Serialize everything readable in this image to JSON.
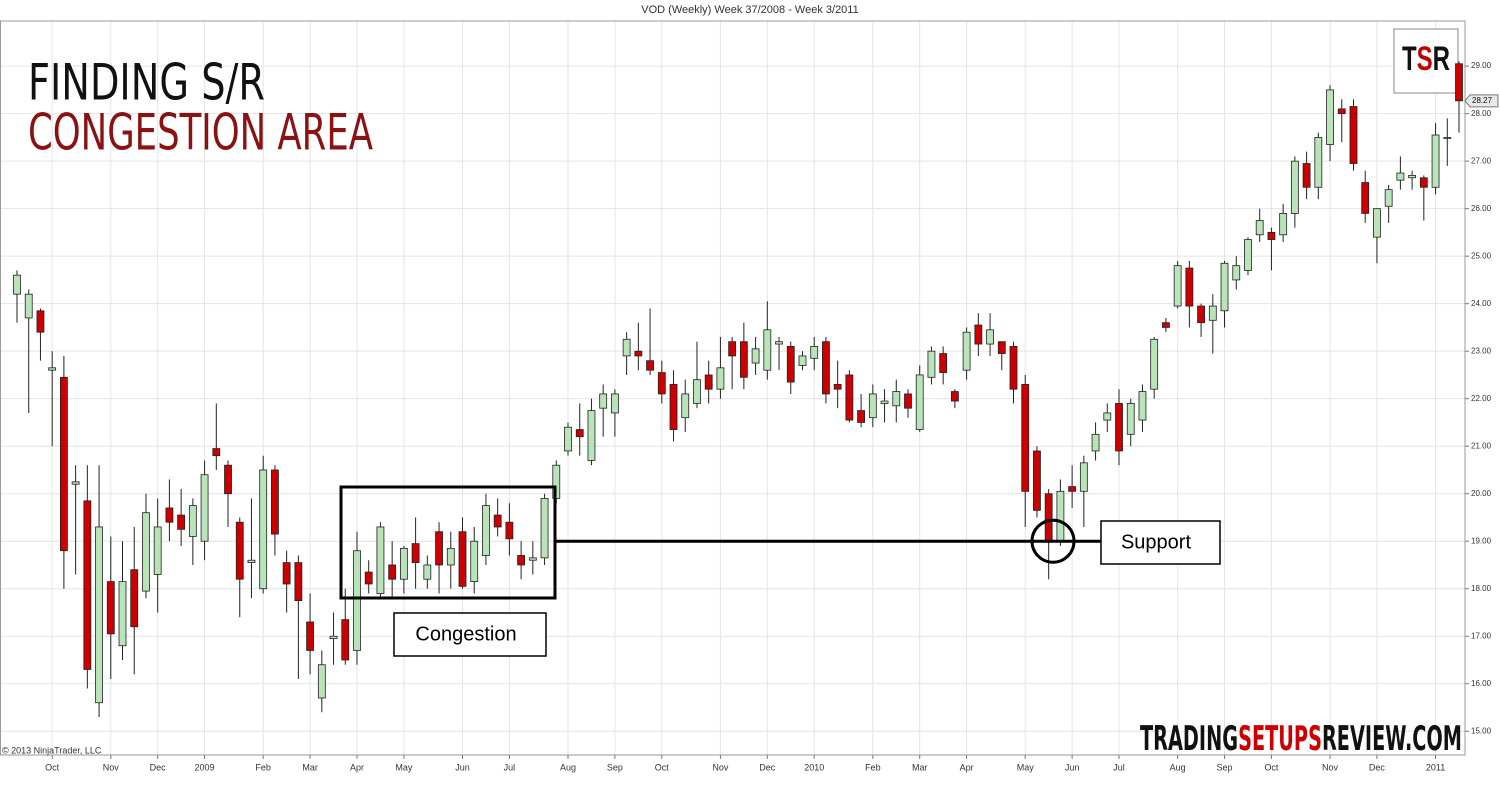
{
  "chart_data": {
    "type": "candlestick",
    "title": "VOD (Weekly)  Week 37/2008 - Week 3/2011",
    "heading": "FINDING S/R",
    "subheading": "CONGESTION AREA",
    "logo_parts": [
      "T",
      "S",
      "R"
    ],
    "watermark_parts": [
      "TRADING",
      "SETUPS",
      "REVIEW.COM"
    ],
    "copyright": "© 2013 NinjaTrader, LLC",
    "annotations": [
      "Congestion",
      "Support"
    ],
    "support_level": 19,
    "last_price": 28.27,
    "up_color": "#b9e3b9",
    "down_color": "#cc0000",
    "grid": true,
    "ylim": [
      14.5,
      29.95
    ],
    "yticks": [
      {
        "value": 15,
        "label": "15.00"
      },
      {
        "value": 16,
        "label": "16.00"
      },
      {
        "value": 17,
        "label": "17.00"
      },
      {
        "value": 18,
        "label": "18.00"
      },
      {
        "value": 19,
        "label": "19.00"
      },
      {
        "value": 20,
        "label": "20.00"
      },
      {
        "value": 21,
        "label": "21.00"
      },
      {
        "value": 22,
        "label": "22.00"
      },
      {
        "value": 23,
        "label": "23.00"
      },
      {
        "value": 24,
        "label": "24.00"
      },
      {
        "value": 25,
        "label": "25.00"
      },
      {
        "value": 26,
        "label": "26.00"
      },
      {
        "value": 27,
        "label": "27.00"
      },
      {
        "value": 28,
        "label": "28.00"
      },
      {
        "value": 29,
        "label": "29.00"
      }
    ],
    "categories": [
      null,
      null,
      null,
      "Oct",
      null,
      null,
      null,
      null,
      "Nov",
      null,
      null,
      null,
      "Dec",
      null,
      null,
      null,
      "2009",
      null,
      null,
      null,
      null,
      "Feb",
      null,
      null,
      null,
      "Mar",
      null,
      null,
      null,
      "Apr",
      null,
      null,
      null,
      "May",
      null,
      null,
      null,
      null,
      "Jun",
      null,
      null,
      null,
      "Jul",
      null,
      null,
      null,
      null,
      "Aug",
      null,
      null,
      null,
      "Sep",
      null,
      null,
      null,
      "Oct",
      null,
      null,
      null,
      null,
      "Nov",
      null,
      null,
      null,
      "Dec",
      null,
      null,
      null,
      "2010",
      null,
      null,
      null,
      null,
      "Feb",
      null,
      null,
      null,
      "Mar",
      null,
      null,
      null,
      "Apr",
      null,
      null,
      null,
      null,
      "May",
      null,
      null,
      null,
      "Jun",
      null,
      null,
      null,
      "Jul",
      null,
      null,
      null,
      null,
      "Aug",
      null,
      null,
      null,
      "Sep",
      null,
      null,
      null,
      "Oct",
      null,
      null,
      null,
      null,
      "Nov",
      null,
      null,
      null,
      "Dec",
      null,
      null,
      null,
      null,
      "2011",
      null,
      null
    ],
    "open": [
      24.2,
      23.7,
      23.85,
      22.6,
      22.45,
      20.2,
      19.85,
      15.6,
      18.15,
      16.8,
      18.4,
      17.95,
      18.3,
      19.7,
      19.55,
      19.1,
      19.0,
      20.95,
      20.6,
      19.4,
      18.55,
      18.0,
      20.5,
      18.55,
      18.55,
      17.3,
      15.7,
      16.95,
      17.35,
      16.7,
      18.35,
      17.9,
      18.5,
      18.2,
      18.95,
      18.2,
      19.2,
      18.5,
      19.2,
      18.15,
      18.7,
      19.55,
      19.4,
      18.7,
      18.6,
      18.65,
      19.9,
      20.9,
      21.35,
      20.7,
      21.8,
      21.7,
      22.9,
      23.0,
      22.8,
      22.55,
      22.3,
      21.6,
      21.9,
      22.5,
      22.2,
      23.2,
      23.2,
      22.75,
      22.6,
      23.15,
      23.1,
      22.7,
      22.85,
      23.2,
      22.3,
      22.5,
      21.75,
      21.6,
      21.9,
      21.85,
      22.1,
      21.35,
      22.45,
      22.95,
      22.15,
      22.6,
      23.55,
      23.15,
      23.2,
      23.1,
      22.3,
      20.9,
      20.0,
      19.0,
      20.15,
      20.05,
      20.9,
      21.55,
      21.9,
      21.25,
      21.55,
      22.2,
      23.6,
      23.95,
      24.75,
      23.95,
      23.65,
      23.85,
      24.5,
      24.7,
      25.45,
      25.5,
      25.45,
      25.9,
      26.95,
      26.45,
      27.35,
      28.1,
      28.15,
      26.55,
      25.4,
      26.05,
      26.6,
      26.65,
      26.65,
      26.45,
      27.5,
      29.05
    ],
    "high": [
      24.7,
      24.3,
      23.9,
      23.0,
      22.9,
      20.6,
      20.6,
      20.6,
      19.1,
      19.0,
      19.3,
      20.0,
      19.9,
      20.3,
      20.1,
      19.9,
      20.7,
      21.9,
      20.7,
      19.5,
      19.9,
      20.8,
      20.6,
      18.8,
      18.7,
      17.9,
      16.7,
      17.5,
      18.0,
      19.2,
      18.6,
      19.4,
      19.0,
      18.9,
      19.5,
      18.7,
      19.4,
      19.2,
      19.5,
      19.3,
      20.0,
      19.9,
      19.8,
      19.0,
      19.0,
      20.0,
      20.7,
      21.5,
      21.9,
      22.0,
      22.3,
      22.2,
      23.4,
      23.6,
      23.9,
      22.8,
      22.6,
      22.4,
      23.2,
      22.8,
      23.3,
      23.3,
      23.6,
      23.3,
      24.05,
      23.3,
      23.2,
      23.0,
      23.3,
      23.3,
      22.8,
      22.6,
      22.1,
      22.3,
      22.2,
      22.4,
      22.2,
      22.7,
      23.1,
      23.1,
      22.2,
      23.5,
      23.8,
      23.8,
      23.2,
      23.2,
      22.5,
      21.0,
      20.1,
      20.3,
      20.6,
      20.8,
      21.5,
      21.9,
      22.2,
      22.0,
      22.3,
      23.3,
      23.7,
      24.9,
      24.9,
      24.0,
      24.2,
      24.9,
      25.0,
      25.4,
      26.0,
      25.6,
      26.1,
      27.1,
      27.2,
      27.6,
      28.6,
      28.3,
      28.3,
      26.8,
      26.0,
      26.5,
      27.1,
      26.8,
      26.7,
      27.8,
      27.9,
      29.1
    ],
    "low": [
      23.6,
      21.7,
      22.8,
      21.0,
      18.0,
      18.3,
      15.9,
      15.3,
      16.1,
      16.5,
      16.2,
      17.8,
      17.5,
      19.0,
      18.9,
      18.5,
      18.6,
      20.5,
      19.3,
      17.4,
      17.8,
      17.9,
      18.7,
      17.5,
      16.1,
      16.2,
      15.4,
      16.4,
      16.4,
      16.4,
      17.9,
      17.8,
      17.8,
      17.9,
      18.0,
      18.0,
      17.9,
      18.0,
      18.0,
      17.9,
      18.5,
      19.1,
      18.7,
      18.2,
      18.3,
      18.5,
      19.8,
      20.8,
      20.8,
      20.6,
      21.2,
      21.2,
      22.5,
      22.6,
      22.5,
      21.9,
      21.1,
      21.3,
      21.8,
      21.9,
      22.0,
      22.2,
      22.2,
      22.5,
      22.4,
      22.6,
      22.1,
      22.6,
      22.6,
      21.9,
      21.8,
      21.5,
      21.4,
      21.4,
      21.5,
      21.5,
      21.6,
      21.3,
      22.3,
      22.3,
      21.8,
      22.4,
      22.9,
      22.9,
      22.6,
      21.9,
      19.3,
      19.5,
      18.2,
      18.9,
      19.7,
      19.3,
      20.7,
      21.3,
      20.6,
      21.0,
      21.3,
      22.0,
      23.4,
      23.9,
      23.5,
      23.3,
      22.95,
      23.5,
      24.3,
      24.6,
      25.3,
      24.7,
      25.3,
      25.6,
      26.2,
      26.2,
      27.0,
      27.4,
      26.8,
      25.7,
      24.85,
      25.7,
      26.4,
      26.4,
      25.75,
      26.3,
      26.9,
      27.6
    ],
    "close": [
      24.6,
      24.2,
      23.4,
      22.65,
      18.8,
      20.25,
      16.3,
      19.3,
      17.05,
      18.15,
      17.2,
      19.6,
      19.3,
      19.4,
      19.25,
      19.75,
      20.4,
      20.8,
      20.0,
      18.2,
      18.6,
      20.5,
      19.15,
      18.1,
      17.75,
      16.7,
      16.4,
      17.0,
      16.5,
      18.8,
      18.1,
      19.3,
      18.2,
      18.85,
      18.55,
      18.5,
      18.5,
      18.85,
      18.05,
      19.0,
      19.75,
      19.3,
      19.05,
      18.5,
      18.65,
      19.9,
      20.6,
      21.4,
      21.2,
      21.75,
      22.1,
      22.1,
      23.25,
      22.9,
      22.6,
      22.1,
      21.35,
      22.1,
      22.4,
      22.2,
      22.65,
      22.9,
      22.45,
      23.05,
      23.45,
      23.2,
      22.35,
      22.9,
      23.1,
      22.1,
      22.2,
      21.55,
      21.5,
      22.1,
      21.95,
      22.15,
      21.8,
      22.5,
      23.0,
      22.55,
      21.95,
      23.4,
      23.15,
      23.45,
      22.95,
      22.2,
      20.05,
      19.65,
      19.0,
      20.05,
      20.05,
      20.65,
      21.25,
      21.7,
      20.9,
      21.9,
      22.15,
      23.25,
      23.5,
      24.8,
      23.95,
      23.6,
      23.95,
      24.85,
      24.8,
      25.35,
      25.75,
      25.35,
      25.9,
      27.0,
      26.45,
      27.5,
      28.5,
      28.0,
      26.95,
      25.9,
      26.0,
      26.4,
      26.75,
      26.7,
      26.45,
      27.55,
      27.5,
      28.27
    ]
  }
}
